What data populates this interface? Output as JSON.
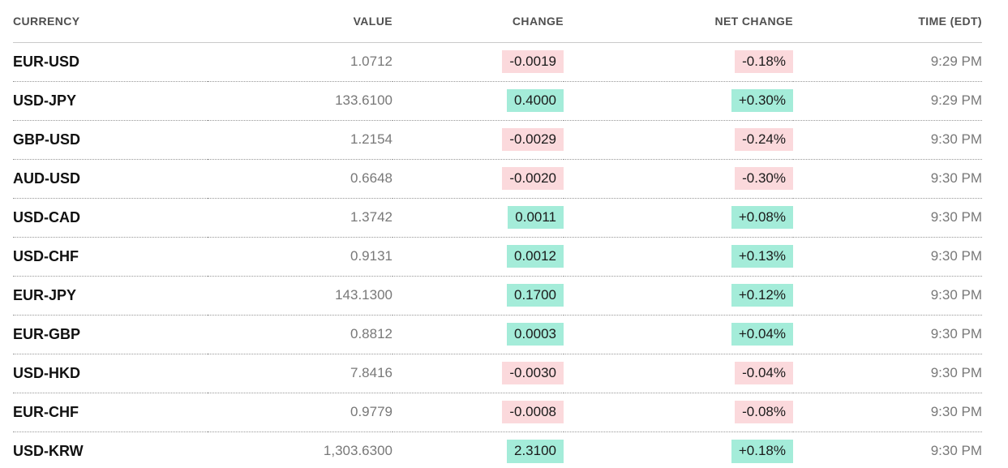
{
  "table": {
    "headers": {
      "currency": "CURRENCY",
      "value": "VALUE",
      "change": "CHANGE",
      "net_change": "NET CHANGE",
      "time": "TIME (EDT)"
    },
    "rows": [
      {
        "pair": "EUR-USD",
        "value": "1.0712",
        "change": "-0.0019",
        "net_change": "-0.18%",
        "time": "9:29 PM",
        "trend": "down"
      },
      {
        "pair": "USD-JPY",
        "value": "133.6100",
        "change": "0.4000",
        "net_change": "+0.30%",
        "time": "9:29 PM",
        "trend": "up"
      },
      {
        "pair": "GBP-USD",
        "value": "1.2154",
        "change": "-0.0029",
        "net_change": "-0.24%",
        "time": "9:30 PM",
        "trend": "down"
      },
      {
        "pair": "AUD-USD",
        "value": "0.6648",
        "change": "-0.0020",
        "net_change": "-0.30%",
        "time": "9:30 PM",
        "trend": "down"
      },
      {
        "pair": "USD-CAD",
        "value": "1.3742",
        "change": "0.0011",
        "net_change": "+0.08%",
        "time": "9:30 PM",
        "trend": "up"
      },
      {
        "pair": "USD-CHF",
        "value": "0.9131",
        "change": "0.0012",
        "net_change": "+0.13%",
        "time": "9:30 PM",
        "trend": "up"
      },
      {
        "pair": "EUR-JPY",
        "value": "143.1300",
        "change": "0.1700",
        "net_change": "+0.12%",
        "time": "9:30 PM",
        "trend": "up"
      },
      {
        "pair": "EUR-GBP",
        "value": "0.8812",
        "change": "0.0003",
        "net_change": "+0.04%",
        "time": "9:30 PM",
        "trend": "up"
      },
      {
        "pair": "USD-HKD",
        "value": "7.8416",
        "change": "-0.0030",
        "net_change": "-0.04%",
        "time": "9:30 PM",
        "trend": "down"
      },
      {
        "pair": "EUR-CHF",
        "value": "0.9779",
        "change": "-0.0008",
        "net_change": "-0.08%",
        "time": "9:30 PM",
        "trend": "down"
      },
      {
        "pair": "USD-KRW",
        "value": "1,303.6300",
        "change": "2.3100",
        "net_change": "+0.18%",
        "time": "9:30 PM",
        "trend": "up"
      }
    ]
  },
  "colors": {
    "positive_bg": "#a4ecd9",
    "negative_bg": "#fbd9dc",
    "header_text": "#4f4f4f",
    "muted_text": "#787878",
    "pair_text": "#111111"
  }
}
